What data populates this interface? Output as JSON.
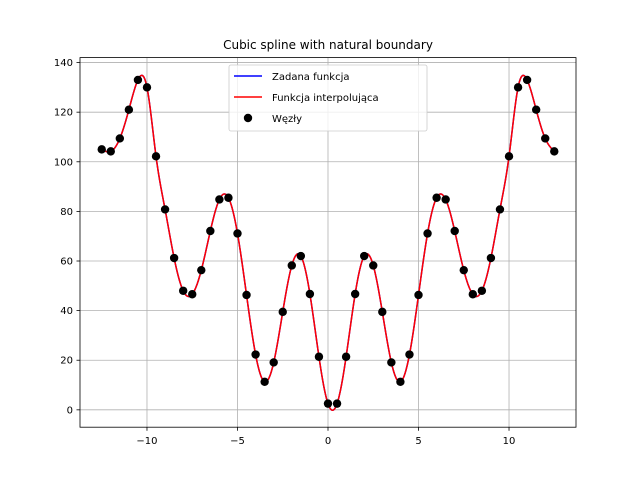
{
  "chart_data": {
    "type": "line",
    "title": "Cubic spline with natural boundary",
    "xlabel": "",
    "ylabel": "",
    "xlim": [
      -13.7,
      13.7
    ],
    "ylim": [
      -7,
      142
    ],
    "xticks": [
      -10,
      -5,
      0,
      5,
      10
    ],
    "xtick_labels": [
      "−10",
      "−5",
      "0",
      "5",
      "10"
    ],
    "yticks": [
      0,
      20,
      40,
      60,
      80,
      100,
      120,
      140
    ],
    "ytick_labels": [
      "0",
      "20",
      "40",
      "60",
      "80",
      "100",
      "120",
      "140"
    ],
    "grid": true,
    "legend_position": "upper center",
    "series": [
      {
        "name": "Zadana funkcja",
        "kind": "line",
        "color": "#0000ff",
        "x_range": [
          -12.5,
          12.5
        ]
      },
      {
        "name": "Funkcja interpolująca",
        "kind": "line",
        "color": "#ff0000",
        "x_range": [
          -12.5,
          12.5
        ]
      },
      {
        "name": "Węzły",
        "kind": "scatter",
        "color": "#000000",
        "x": [
          -12.5,
          -12.0,
          -11.5,
          -11.0,
          -10.5,
          -10.0,
          -9.5,
          -9.0,
          -8.5,
          -8.0,
          -7.5,
          -7.0,
          -6.5,
          -6.0,
          -5.5,
          -5.0,
          -4.5,
          -4.0,
          -3.5,
          -3.0,
          -2.5,
          -2.0,
          -1.5,
          -1.0,
          -0.5,
          0.0,
          0.5,
          1.0,
          1.5,
          2.0,
          2.5,
          3.0,
          3.5,
          4.0,
          4.5,
          5.0,
          5.5,
          6.0,
          6.5,
          7.0,
          7.5,
          8.0,
          8.5,
          9.0,
          9.5,
          10.0,
          10.5,
          11.0,
          11.5,
          12.0,
          12.5
        ],
        "y": [
          105.0,
          104.2,
          109.4,
          121.0,
          133.0,
          130.0,
          102.2,
          80.8,
          61.2,
          48.0,
          46.6,
          56.3,
          72.1,
          84.8,
          85.5,
          71.1,
          46.3,
          22.3,
          11.3,
          19.1,
          39.5,
          58.2,
          62.0,
          46.7,
          21.4,
          2.5,
          2.5,
          21.4,
          46.7,
          62.0,
          58.2,
          39.5,
          19.1,
          11.3,
          22.3,
          46.3,
          71.1,
          85.5,
          84.8,
          72.1,
          56.3,
          46.6,
          48.0,
          61.2,
          80.8,
          102.2,
          130.0,
          133.0,
          121.0,
          109.4,
          104.2
        ]
      }
    ]
  }
}
